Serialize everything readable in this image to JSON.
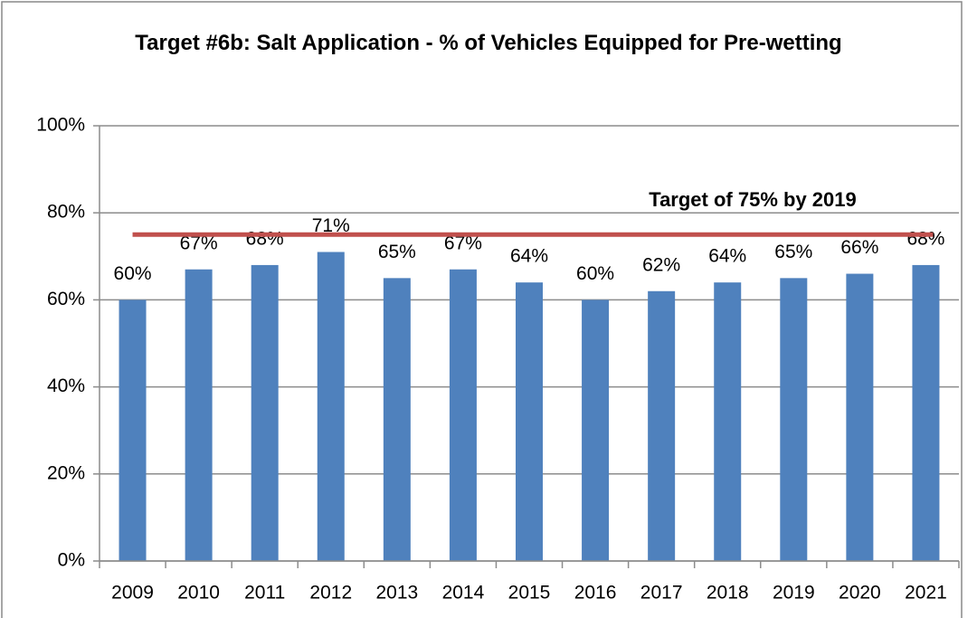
{
  "chart_data": {
    "type": "bar",
    "title": "Target #6b: Salt Application  - % of Vehicles Equipped for Pre-wetting",
    "categories": [
      "2009",
      "2010",
      "2011",
      "2012",
      "2013",
      "2014",
      "2015",
      "2016",
      "2017",
      "2018",
      "2019",
      "2020",
      "2021"
    ],
    "values": [
      60,
      67,
      68,
      71,
      65,
      67,
      64,
      60,
      62,
      64,
      65,
      66,
      68
    ],
    "value_labels": [
      "60%",
      "67%",
      "68%",
      "71%",
      "65%",
      "67%",
      "64%",
      "60%",
      "62%",
      "64%",
      "65%",
      "66%",
      "68%"
    ],
    "color": "#4f81bd",
    "ylim": [
      0,
      100
    ],
    "yticks": [
      {
        "value": 0,
        "label": "0%"
      },
      {
        "value": 20,
        "label": "20%"
      },
      {
        "value": 40,
        "label": "40%"
      },
      {
        "value": 60,
        "label": "60%"
      },
      {
        "value": 80,
        "label": "80%"
      },
      {
        "value": 100,
        "label": "100%"
      }
    ],
    "grid": true,
    "target": {
      "value": 75,
      "label": "Target of 75% by 2019",
      "color": "#c0504d"
    }
  }
}
